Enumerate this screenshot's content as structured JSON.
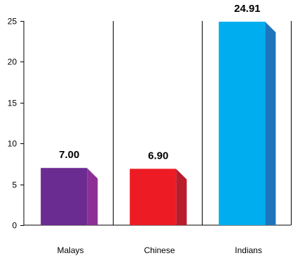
{
  "chart_data": {
    "type": "bar",
    "categories": [
      "Malays",
      "Chinese",
      "Indians"
    ],
    "values": [
      7.0,
      6.9,
      24.91
    ],
    "value_labels": [
      "7.00",
      "6.90",
      "24.91"
    ],
    "ylim": [
      0,
      25
    ],
    "yticks": [
      0,
      5,
      10,
      15,
      20,
      25
    ],
    "ytick_labels": [
      "0",
      "5",
      "10",
      "15",
      "20",
      "25"
    ],
    "bar_style": "3d",
    "colors": [
      {
        "front": "#6A2C91",
        "side": "#8E2F96"
      },
      {
        "front": "#ED1C24",
        "side": "#B91D2C"
      },
      {
        "front": "#00AEEF",
        "side": "#1F75BC"
      }
    ],
    "grid": "vertical separators between categories",
    "legend": "none"
  }
}
